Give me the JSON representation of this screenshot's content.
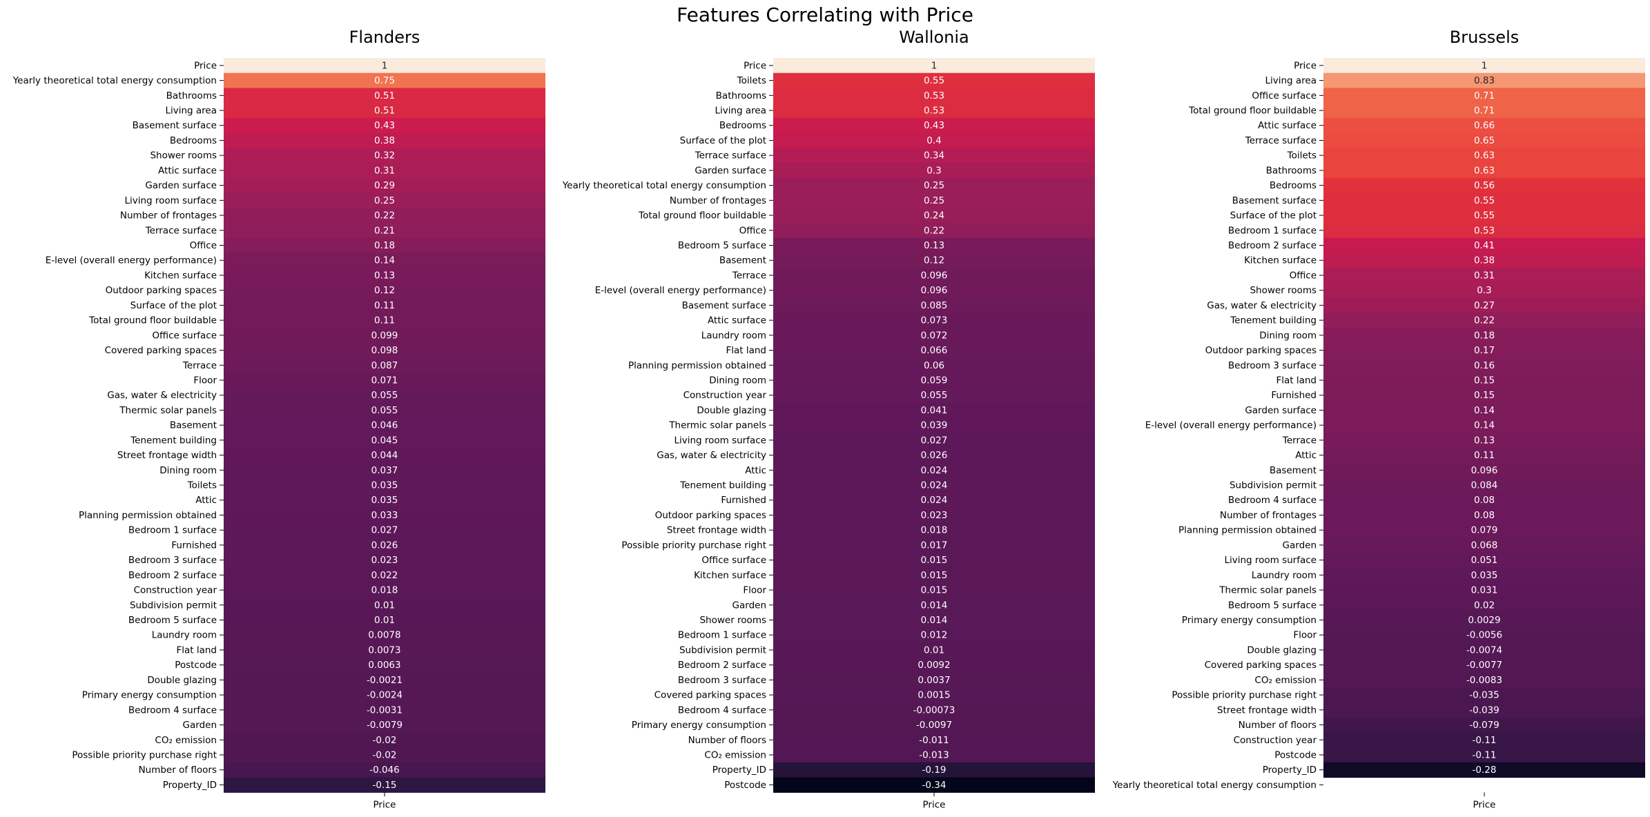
{
  "suptitle": "Features Correlating with Price",
  "chart_data": [
    {
      "type": "heatmap",
      "title": "Flanders",
      "columns": [
        "Price"
      ],
      "rows": [
        "Price",
        "Yearly theoretical total energy consumption",
        "Bathrooms",
        "Living area",
        "Basement surface",
        "Bedrooms",
        "Shower rooms",
        "Attic surface",
        "Garden surface",
        "Living room surface",
        "Number of frontages",
        "Terrace surface",
        "Office",
        "E-level (overall energy performance)",
        "Kitchen surface",
        "Outdoor parking spaces",
        "Surface of the plot",
        "Total ground floor buildable",
        "Office surface",
        "Covered parking spaces",
        "Terrace",
        "Floor",
        "Gas, water & electricity",
        "Thermic solar panels",
        "Basement",
        "Tenement building",
        "Street frontage width",
        "Dining room",
        "Toilets",
        "Attic",
        "Planning permission obtained",
        "Bedroom 1 surface",
        "Furnished",
        "Bedroom 3 surface",
        "Bedroom 2 surface",
        "Construction year",
        "Subdivision permit",
        "Bedroom 5 surface",
        "Laundry room",
        "Flat land",
        "Postcode",
        "Double glazing",
        "Primary energy consumption",
        "Bedroom 4 surface",
        "Garden",
        "CO₂ emission",
        "Possible priority purchase right",
        "Number of floors",
        "Property_ID"
      ],
      "values": [
        1,
        0.75,
        0.51,
        0.51,
        0.43,
        0.38,
        0.32,
        0.31,
        0.29,
        0.25,
        0.22,
        0.21,
        0.18,
        0.14,
        0.13,
        0.12,
        0.11,
        0.11,
        0.099,
        0.098,
        0.087,
        0.071,
        0.055,
        0.055,
        0.046,
        0.045,
        0.044,
        0.037,
        0.035,
        0.035,
        0.033,
        0.027,
        0.026,
        0.023,
        0.022,
        0.018,
        0.01,
        0.01,
        0.0078,
        0.0073,
        0.0063,
        -0.0021,
        -0.0024,
        -0.0031,
        -0.0079,
        -0.02,
        -0.02,
        -0.046,
        -0.15
      ],
      "labels": [
        "1",
        "0.75",
        "0.51",
        "0.51",
        "0.43",
        "0.38",
        "0.32",
        "0.31",
        "0.29",
        "0.25",
        "0.22",
        "0.21",
        "0.18",
        "0.14",
        "0.13",
        "0.12",
        "0.11",
        "0.11",
        "0.099",
        "0.098",
        "0.087",
        "0.071",
        "0.055",
        "0.055",
        "0.046",
        "0.045",
        "0.044",
        "0.037",
        "0.035",
        "0.035",
        "0.033",
        "0.027",
        "0.026",
        "0.023",
        "0.022",
        "0.018",
        "0.01",
        "0.01",
        "0.0078",
        "0.0073",
        "0.0063",
        "-0.0021",
        "-0.0024",
        "-0.0031",
        "-0.0079",
        "-0.02",
        "-0.02",
        "-0.046",
        "-0.15"
      ]
    },
    {
      "type": "heatmap",
      "title": "Wallonia",
      "columns": [
        "Price"
      ],
      "rows": [
        "Price",
        "Toilets",
        "Bathrooms",
        "Living area",
        "Bedrooms",
        "Surface of the plot",
        "Terrace surface",
        "Garden surface",
        "Yearly theoretical total energy consumption",
        "Number of frontages",
        "Total ground floor buildable",
        "Office",
        "Bedroom 5 surface",
        "Basement",
        "Terrace",
        "E-level (overall energy performance)",
        "Basement surface",
        "Attic surface",
        "Laundry room",
        "Flat land",
        "Planning permission obtained",
        "Dining room",
        "Construction year",
        "Double glazing",
        "Thermic solar panels",
        "Living room surface",
        "Gas, water & electricity",
        "Attic",
        "Tenement building",
        "Furnished",
        "Outdoor parking spaces",
        "Street frontage width",
        "Possible priority purchase right",
        "Office surface",
        "Kitchen surface",
        "Floor",
        "Garden",
        "Shower rooms",
        "Bedroom 1 surface",
        "Subdivision permit",
        "Bedroom 2 surface",
        "Bedroom 3 surface",
        "Covered parking spaces",
        "Bedroom 4 surface",
        "Primary energy consumption",
        "Number of floors",
        "CO₂ emission",
        "Property_ID",
        "Postcode"
      ],
      "values": [
        1,
        0.55,
        0.53,
        0.53,
        0.43,
        0.4,
        0.34,
        0.3,
        0.25,
        0.25,
        0.24,
        0.22,
        0.13,
        0.12,
        0.096,
        0.096,
        0.085,
        0.073,
        0.072,
        0.066,
        0.06,
        0.059,
        0.055,
        0.041,
        0.039,
        0.027,
        0.026,
        0.024,
        0.024,
        0.024,
        0.023,
        0.018,
        0.017,
        0.015,
        0.015,
        0.015,
        0.014,
        0.014,
        0.012,
        0.01,
        0.0092,
        0.0037,
        0.0015,
        -0.00073,
        -0.0097,
        -0.011,
        -0.013,
        -0.19,
        -0.34
      ],
      "labels": [
        "1",
        "0.55",
        "0.53",
        "0.53",
        "0.43",
        "0.4",
        "0.34",
        "0.3",
        "0.25",
        "0.25",
        "0.24",
        "0.22",
        "0.13",
        "0.12",
        "0.096",
        "0.096",
        "0.085",
        "0.073",
        "0.072",
        "0.066",
        "0.06",
        "0.059",
        "0.055",
        "0.041",
        "0.039",
        "0.027",
        "0.026",
        "0.024",
        "0.024",
        "0.024",
        "0.023",
        "0.018",
        "0.017",
        "0.015",
        "0.015",
        "0.015",
        "0.014",
        "0.014",
        "0.012",
        "0.01",
        "0.0092",
        "0.0037",
        "0.0015",
        "-0.00073",
        "-0.0097",
        "-0.011",
        "-0.013",
        "-0.19",
        "-0.34"
      ]
    },
    {
      "type": "heatmap",
      "title": "Brussels",
      "columns": [
        "Price"
      ],
      "rows": [
        "Price",
        "Living area",
        "Office surface",
        "Total ground floor buildable",
        "Attic surface",
        "Terrace surface",
        "Toilets",
        "Bathrooms",
        "Bedrooms",
        "Basement surface",
        "Surface of the plot",
        "Bedroom 1 surface",
        "Bedroom 2 surface",
        "Kitchen surface",
        "Office",
        "Shower rooms",
        "Gas, water & electricity",
        "Tenement building",
        "Dining room",
        "Outdoor parking spaces",
        "Bedroom 3 surface",
        "Flat land",
        "Furnished",
        "Garden surface",
        "E-level (overall energy performance)",
        "Terrace",
        "Attic",
        "Basement",
        "Subdivision permit",
        "Bedroom 4 surface",
        "Number of frontages",
        "Planning permission obtained",
        "Garden",
        "Living room surface",
        "Laundry room",
        "Thermic solar panels",
        "Bedroom 5 surface",
        "Primary energy consumption",
        "Floor",
        "Double glazing",
        "Covered parking spaces",
        "CO₂ emission",
        "Possible priority purchase right",
        "Street frontage width",
        "Number of floors",
        "Construction year",
        "Postcode",
        "Property_ID",
        "Yearly theoretical total energy consumption"
      ],
      "values": [
        1,
        0.83,
        0.71,
        0.71,
        0.66,
        0.65,
        0.63,
        0.63,
        0.56,
        0.55,
        0.55,
        0.53,
        0.41,
        0.38,
        0.31,
        0.3,
        0.27,
        0.22,
        0.18,
        0.17,
        0.16,
        0.15,
        0.15,
        0.14,
        0.14,
        0.13,
        0.11,
        0.096,
        0.084,
        0.08,
        0.08,
        0.079,
        0.068,
        0.051,
        0.035,
        0.031,
        0.02,
        0.0029,
        -0.0056,
        -0.0074,
        -0.0077,
        -0.0083,
        -0.035,
        -0.039,
        -0.079,
        -0.11,
        -0.11,
        -0.28,
        null
      ],
      "labels": [
        "1",
        "0.83",
        "0.71",
        "0.71",
        "0.66",
        "0.65",
        "0.63",
        "0.63",
        "0.56",
        "0.55",
        "0.55",
        "0.53",
        "0.41",
        "0.38",
        "0.31",
        "0.3",
        "0.27",
        "0.22",
        "0.18",
        "0.17",
        "0.16",
        "0.15",
        "0.15",
        "0.14",
        "0.14",
        "0.13",
        "0.11",
        "0.096",
        "0.084",
        "0.08",
        "0.08",
        "0.079",
        "0.068",
        "0.051",
        "0.035",
        "0.031",
        "0.02",
        "0.0029",
        "-0.0056",
        "-0.0074",
        "-0.0077",
        "-0.0083",
        "-0.035",
        "-0.039",
        "-0.079",
        "-0.11",
        "-0.11",
        "-0.28",
        ""
      ]
    }
  ]
}
